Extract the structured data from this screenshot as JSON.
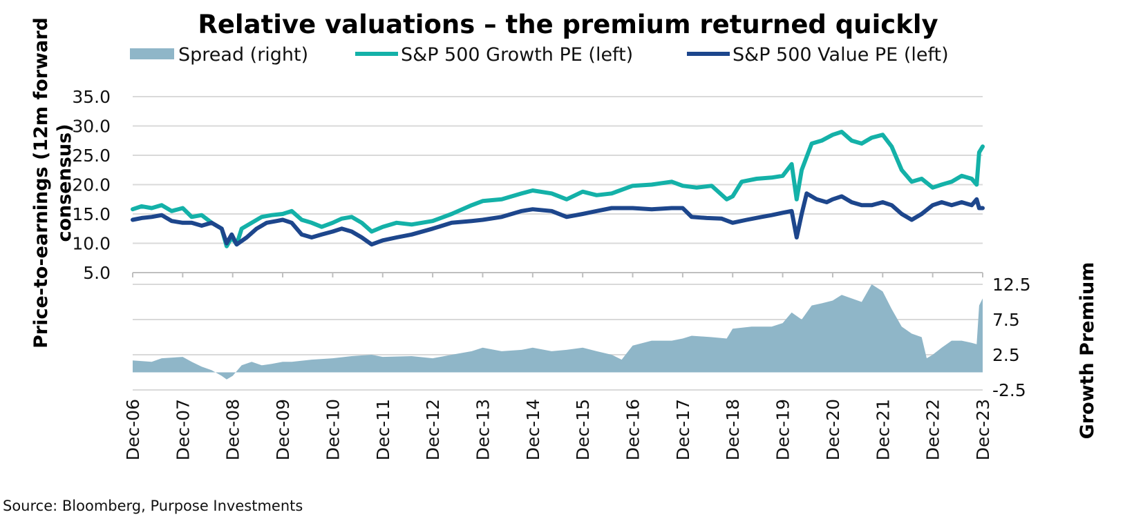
{
  "chart_data": {
    "type": "line",
    "title": "Relative valuations – the premium returned quickly",
    "source": "Source: Bloomberg, Purpose Investments",
    "left_axis": {
      "label": "Price-to-earnings (12m forward consensus)",
      "label_line1": "Price-to-earnings (12m forward",
      "label_line2": "consensus)",
      "ylim": [
        5,
        35
      ],
      "ticks": [
        "35.0",
        "30.0",
        "25.0",
        "20.0",
        "15.0",
        "10.0",
        "5.0"
      ]
    },
    "right_axis": {
      "label": "Growth Premium",
      "ylim": [
        -2.5,
        12.5
      ],
      "ticks": [
        "12.5",
        "7.5",
        "2.5",
        "-2.5"
      ]
    },
    "x_labels": [
      "Dec-06",
      "Dec-07",
      "Dec-08",
      "Dec-09",
      "Dec-10",
      "Dec-11",
      "Dec-12",
      "Dec-13",
      "Dec-14",
      "Dec-15",
      "Dec-16",
      "Dec-17",
      "Dec-18",
      "Dec-19",
      "Dec-20",
      "Dec-21",
      "Dec-22",
      "Dec-23"
    ],
    "x_range": [
      2006.92,
      2023.92
    ],
    "legend": [
      {
        "name": "Spread (right)",
        "type": "area",
        "color": "#8fb6c8"
      },
      {
        "name": "S&P 500 Growth PE (left)",
        "type": "line",
        "color": "#14b1a8"
      },
      {
        "name": "S&P 500 Value  PE (left)",
        "type": "line",
        "color": "#1d468c"
      }
    ],
    "series": [
      {
        "name": "S&P 500 Growth PE (left)",
        "axis": "left",
        "color": "#14b1a8",
        "points": [
          [
            2006.92,
            15.8
          ],
          [
            2007.1,
            16.3
          ],
          [
            2007.3,
            16.0
          ],
          [
            2007.5,
            16.5
          ],
          [
            2007.7,
            15.5
          ],
          [
            2007.92,
            16.0
          ],
          [
            2008.1,
            14.5
          ],
          [
            2008.3,
            14.8
          ],
          [
            2008.5,
            13.5
          ],
          [
            2008.7,
            12.5
          ],
          [
            2008.8,
            9.5
          ],
          [
            2008.9,
            11.0
          ],
          [
            2009.0,
            9.8
          ],
          [
            2009.1,
            12.5
          ],
          [
            2009.3,
            13.5
          ],
          [
            2009.5,
            14.5
          ],
          [
            2009.7,
            14.8
          ],
          [
            2009.92,
            15.0
          ],
          [
            2010.1,
            15.5
          ],
          [
            2010.3,
            14.0
          ],
          [
            2010.5,
            13.5
          ],
          [
            2010.7,
            12.8
          ],
          [
            2010.92,
            13.5
          ],
          [
            2011.1,
            14.2
          ],
          [
            2011.3,
            14.5
          ],
          [
            2011.5,
            13.5
          ],
          [
            2011.7,
            12.0
          ],
          [
            2011.92,
            12.8
          ],
          [
            2012.2,
            13.5
          ],
          [
            2012.5,
            13.2
          ],
          [
            2012.92,
            13.8
          ],
          [
            2013.3,
            15.0
          ],
          [
            2013.7,
            16.5
          ],
          [
            2013.92,
            17.2
          ],
          [
            2014.3,
            17.5
          ],
          [
            2014.7,
            18.5
          ],
          [
            2014.92,
            19.0
          ],
          [
            2015.3,
            18.5
          ],
          [
            2015.6,
            17.5
          ],
          [
            2015.92,
            18.8
          ],
          [
            2016.2,
            18.2
          ],
          [
            2016.5,
            18.5
          ],
          [
            2016.92,
            19.8
          ],
          [
            2017.3,
            20.0
          ],
          [
            2017.7,
            20.5
          ],
          [
            2017.92,
            19.8
          ],
          [
            2018.2,
            19.5
          ],
          [
            2018.5,
            19.8
          ],
          [
            2018.8,
            17.5
          ],
          [
            2018.92,
            18.0
          ],
          [
            2019.1,
            20.5
          ],
          [
            2019.4,
            21.0
          ],
          [
            2019.7,
            21.2
          ],
          [
            2019.92,
            21.5
          ],
          [
            2020.1,
            23.5
          ],
          [
            2020.2,
            17.5
          ],
          [
            2020.3,
            22.5
          ],
          [
            2020.5,
            27.0
          ],
          [
            2020.7,
            27.5
          ],
          [
            2020.92,
            28.5
          ],
          [
            2021.1,
            29.0
          ],
          [
            2021.3,
            27.5
          ],
          [
            2021.5,
            27.0
          ],
          [
            2021.7,
            28.0
          ],
          [
            2021.92,
            28.5
          ],
          [
            2022.1,
            26.5
          ],
          [
            2022.3,
            22.5
          ],
          [
            2022.5,
            20.5
          ],
          [
            2022.7,
            21.0
          ],
          [
            2022.92,
            19.5
          ],
          [
            2023.1,
            20.0
          ],
          [
            2023.3,
            20.5
          ],
          [
            2023.5,
            21.5
          ],
          [
            2023.7,
            21.0
          ],
          [
            2023.8,
            20.0
          ],
          [
            2023.85,
            25.5
          ],
          [
            2023.92,
            26.5
          ]
        ]
      },
      {
        "name": "S&P 500 Value  PE (left)",
        "axis": "left",
        "color": "#1d468c",
        "points": [
          [
            2006.92,
            14.0
          ],
          [
            2007.1,
            14.3
          ],
          [
            2007.3,
            14.5
          ],
          [
            2007.5,
            14.8
          ],
          [
            2007.7,
            13.8
          ],
          [
            2007.92,
            13.5
          ],
          [
            2008.1,
            13.5
          ],
          [
            2008.3,
            13.0
          ],
          [
            2008.5,
            13.5
          ],
          [
            2008.7,
            12.5
          ],
          [
            2008.8,
            10.0
          ],
          [
            2008.9,
            11.5
          ],
          [
            2009.0,
            9.8
          ],
          [
            2009.2,
            11.0
          ],
          [
            2009.4,
            12.5
          ],
          [
            2009.6,
            13.5
          ],
          [
            2009.8,
            13.8
          ],
          [
            2009.92,
            14.0
          ],
          [
            2010.1,
            13.5
          ],
          [
            2010.3,
            11.5
          ],
          [
            2010.5,
            11.0
          ],
          [
            2010.7,
            11.5
          ],
          [
            2010.92,
            12.0
          ],
          [
            2011.1,
            12.5
          ],
          [
            2011.3,
            12.0
          ],
          [
            2011.5,
            11.0
          ],
          [
            2011.7,
            9.8
          ],
          [
            2011.92,
            10.5
          ],
          [
            2012.2,
            11.0
          ],
          [
            2012.5,
            11.5
          ],
          [
            2012.92,
            12.5
          ],
          [
            2013.3,
            13.5
          ],
          [
            2013.7,
            13.8
          ],
          [
            2013.92,
            14.0
          ],
          [
            2014.3,
            14.5
          ],
          [
            2014.7,
            15.5
          ],
          [
            2014.92,
            15.8
          ],
          [
            2015.3,
            15.5
          ],
          [
            2015.6,
            14.5
          ],
          [
            2015.92,
            15.0
          ],
          [
            2016.2,
            15.5
          ],
          [
            2016.5,
            16.0
          ],
          [
            2016.92,
            16.0
          ],
          [
            2017.3,
            15.8
          ],
          [
            2017.7,
            16.0
          ],
          [
            2017.92,
            16.0
          ],
          [
            2018.1,
            14.5
          ],
          [
            2018.4,
            14.3
          ],
          [
            2018.7,
            14.2
          ],
          [
            2018.92,
            13.5
          ],
          [
            2019.2,
            14.0
          ],
          [
            2019.5,
            14.5
          ],
          [
            2019.7,
            14.8
          ],
          [
            2019.92,
            15.2
          ],
          [
            2020.1,
            15.5
          ],
          [
            2020.2,
            11.0
          ],
          [
            2020.3,
            15.0
          ],
          [
            2020.4,
            18.5
          ],
          [
            2020.6,
            17.5
          ],
          [
            2020.8,
            17.0
          ],
          [
            2020.92,
            17.5
          ],
          [
            2021.1,
            18.0
          ],
          [
            2021.3,
            17.0
          ],
          [
            2021.5,
            16.5
          ],
          [
            2021.7,
            16.5
          ],
          [
            2021.92,
            17.0
          ],
          [
            2022.1,
            16.5
          ],
          [
            2022.3,
            15.0
          ],
          [
            2022.5,
            14.0
          ],
          [
            2022.7,
            15.0
          ],
          [
            2022.92,
            16.5
          ],
          [
            2023.1,
            17.0
          ],
          [
            2023.3,
            16.5
          ],
          [
            2023.5,
            17.0
          ],
          [
            2023.7,
            16.5
          ],
          [
            2023.8,
            17.5
          ],
          [
            2023.85,
            16.0
          ],
          [
            2023.92,
            16.0
          ]
        ]
      },
      {
        "name": "Spread (right)",
        "axis": "right",
        "color": "#8fb6c8",
        "points": [
          [
            2006.92,
            1.7
          ],
          [
            2007.3,
            1.5
          ],
          [
            2007.5,
            2.0
          ],
          [
            2007.92,
            2.2
          ],
          [
            2008.1,
            1.5
          ],
          [
            2008.3,
            0.8
          ],
          [
            2008.5,
            0.3
          ],
          [
            2008.7,
            -0.5
          ],
          [
            2008.8,
            -1.0
          ],
          [
            2008.92,
            -0.5
          ],
          [
            2009.1,
            1.0
          ],
          [
            2009.3,
            1.5
          ],
          [
            2009.5,
            1.0
          ],
          [
            2009.7,
            1.2
          ],
          [
            2009.92,
            1.5
          ],
          [
            2010.1,
            1.5
          ],
          [
            2010.5,
            1.8
          ],
          [
            2010.92,
            2.0
          ],
          [
            2011.3,
            2.3
          ],
          [
            2011.7,
            2.5
          ],
          [
            2011.92,
            2.2
          ],
          [
            2012.5,
            2.3
          ],
          [
            2012.92,
            2.0
          ],
          [
            2013.3,
            2.5
          ],
          [
            2013.7,
            3.0
          ],
          [
            2013.92,
            3.5
          ],
          [
            2014.3,
            3.0
          ],
          [
            2014.7,
            3.2
          ],
          [
            2014.92,
            3.5
          ],
          [
            2015.3,
            3.0
          ],
          [
            2015.6,
            3.2
          ],
          [
            2015.92,
            3.5
          ],
          [
            2016.2,
            3.0
          ],
          [
            2016.5,
            2.5
          ],
          [
            2016.7,
            1.8
          ],
          [
            2016.92,
            3.8
          ],
          [
            2017.3,
            4.5
          ],
          [
            2017.7,
            4.5
          ],
          [
            2017.92,
            4.8
          ],
          [
            2018.1,
            5.2
          ],
          [
            2018.5,
            5.0
          ],
          [
            2018.8,
            4.8
          ],
          [
            2018.92,
            6.2
          ],
          [
            2019.3,
            6.5
          ],
          [
            2019.7,
            6.5
          ],
          [
            2019.92,
            7.0
          ],
          [
            2020.1,
            8.5
          ],
          [
            2020.3,
            7.5
          ],
          [
            2020.5,
            9.5
          ],
          [
            2020.7,
            9.8
          ],
          [
            2020.92,
            10.2
          ],
          [
            2021.1,
            11.0
          ],
          [
            2021.3,
            10.5
          ],
          [
            2021.5,
            10.0
          ],
          [
            2021.7,
            12.5
          ],
          [
            2021.92,
            11.5
          ],
          [
            2022.1,
            9.0
          ],
          [
            2022.3,
            6.5
          ],
          [
            2022.5,
            5.5
          ],
          [
            2022.7,
            5.0
          ],
          [
            2022.8,
            2.0
          ],
          [
            2022.92,
            2.5
          ],
          [
            2023.1,
            3.5
          ],
          [
            2023.3,
            4.5
          ],
          [
            2023.5,
            4.5
          ],
          [
            2023.7,
            4.2
          ],
          [
            2023.8,
            4.0
          ],
          [
            2023.85,
            9.5
          ],
          [
            2023.92,
            10.5
          ]
        ]
      }
    ]
  }
}
